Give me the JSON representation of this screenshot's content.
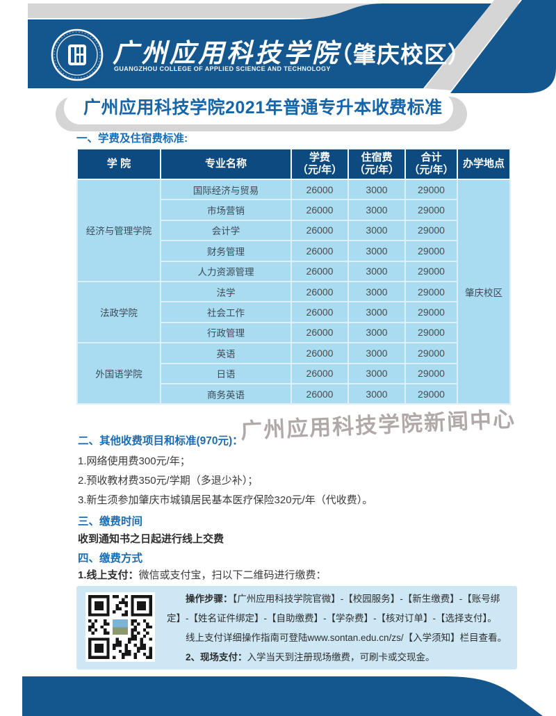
{
  "banner": {
    "school_name": "广州应用科技学院",
    "school_name_en": "GUANGZHOU COLLEGE OF APPLIED SCIENCE AND TECHNOLOGY",
    "campus": "（肇庆校区）"
  },
  "page_title": "广州应用科技学院2021年普通专升本收费标准",
  "watermark": "广州应用科技学院新闻中心",
  "section1": {
    "heading": "一、学费及住宿费标准:",
    "table": {
      "cols": [
        {
          "l1": "学 院",
          "l2": ""
        },
        {
          "l1": "专业名称",
          "l2": ""
        },
        {
          "l1": "学费",
          "l2": "（元/年）"
        },
        {
          "l1": "住宿费",
          "l2": "（元/年）"
        },
        {
          "l1": "合计",
          "l2": "（元/年）"
        },
        {
          "l1": "办学地点",
          "l2": ""
        }
      ],
      "colleges": [
        {
          "name": "经济与管理学院"
        },
        {
          "name": "法政学院"
        },
        {
          "name": "外国语学院"
        }
      ],
      "rows": [
        {
          "major": "国际经济与贸易",
          "tuition": "26000",
          "dorm": "3000",
          "total": "29000"
        },
        {
          "major": "市场营销",
          "tuition": "26000",
          "dorm": "3000",
          "total": "29000"
        },
        {
          "major": "会计学",
          "tuition": "26000",
          "dorm": "3000",
          "total": "29000"
        },
        {
          "major": "财务管理",
          "tuition": "26000",
          "dorm": "3000",
          "total": "29000"
        },
        {
          "major": "人力资源管理",
          "tuition": "26000",
          "dorm": "3000",
          "total": "29000"
        },
        {
          "major": "法学",
          "tuition": "26000",
          "dorm": "3000",
          "total": "29000"
        },
        {
          "major": "社会工作",
          "tuition": "26000",
          "dorm": "3000",
          "total": "29000"
        },
        {
          "major": "行政管理",
          "tuition": "26000",
          "dorm": "3000",
          "total": "29000"
        },
        {
          "major": "英语",
          "tuition": "26000",
          "dorm": "3000",
          "total": "29000"
        },
        {
          "major": "日语",
          "tuition": "26000",
          "dorm": "3000",
          "total": "29000"
        },
        {
          "major": "商务英语",
          "tuition": "26000",
          "dorm": "3000",
          "total": "29000"
        }
      ],
      "location": "肇庆校区"
    }
  },
  "section2": {
    "heading": "二、其他收费项目和标准(970元)：",
    "items": [
      "1.网络使用费300元/年；",
      "2.预收教材费350元/学期（多退少补）；",
      "3.新生须参加肇庆市城镇居民基本医疗保险320元/年（代收费）。"
    ]
  },
  "section3": {
    "heading": "三、缴费时间",
    "body": "收到通知书之日起进行线上交费"
  },
  "section4": {
    "heading": "四、缴费方式",
    "online_label": "1.线上支付：",
    "online_text": "微信或支付宝，扫以下二维码进行缴费："
  },
  "paybox": {
    "steps_label": "操作步骤：",
    "steps_text": "【广州应用科技学院官微】-【校园服务】-【新生缴费】-【账号绑定】-【姓名证件绑定】-【自助缴费】-【学杂费】-【核对订单】-【选择支付】。",
    "guide_text": "线上支付详细操作指南可登陆www.sontan.edu.cn/zs/【入学须知】栏目查看。",
    "offline_label": "2、现场支付：",
    "offline_text": "入学当天到注册现场缴费，可刷卡或交现金。"
  },
  "colors": {
    "banner_blue": "#14578f",
    "header_navy": "#0c4a7f",
    "row_blue": "#a9dbf1",
    "box_blue": "#cde7f4",
    "title_blue": "#1565a8",
    "heading_blue": "#1b6db3",
    "stripe_gray": "#d5d5d5"
  }
}
